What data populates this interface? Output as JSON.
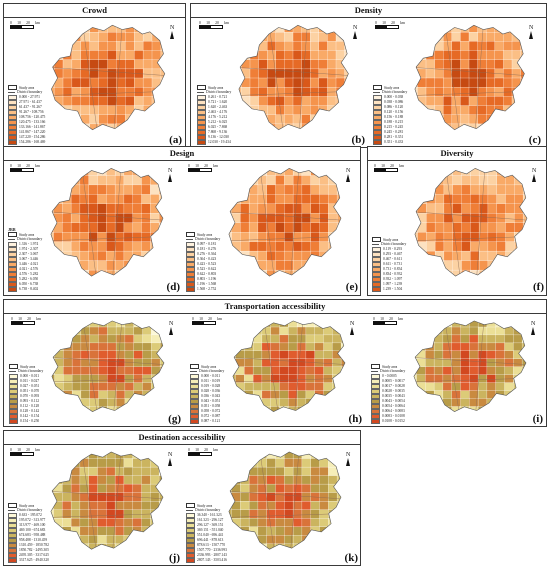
{
  "legend_common": {
    "study_area": "Study area",
    "district_boundary": "District boundary"
  },
  "panels": [
    {
      "id": "crowd",
      "title": "Crowd",
      "maps": [
        {
          "letter": "(a)",
          "legend_title": "",
          "classes": [
            "0.000 - 27.971",
            "27.971 - 61.437",
            "61.437 - 91.267",
            "91.267 - 108.756",
            "108.756 - 120.475",
            "120.475 - 133.166",
            "133.166 - 141.867",
            "141.867 - 147.220",
            "147.220 - 154.286",
            "154.286 - 168.469"
          ],
          "colors": [
            "#fef2df",
            "#fde2c1",
            "#fcd2a3",
            "#fbbf85",
            "#f9aa67",
            "#f5944d",
            "#ef7e37",
            "#e66a25",
            "#d9581a",
            "#c64a12"
          ],
          "seed": 3
        }
      ]
    },
    {
      "id": "density",
      "title": "Density",
      "maps": [
        {
          "letter": "(b)",
          "legend_title": "",
          "classes": [
            "0.261 - 0.721",
            "0.721 - 1.620",
            "1.620 - 2.463",
            "2.463 - 4.176",
            "4.176 - 5.212",
            "5.212 - 6.025",
            "6.025 - 7.868",
            "7.868 - 9.136",
            "9.136 - 12.030",
            "12.030 - 19.434"
          ],
          "colors": [
            "#fef2df",
            "#fde2c1",
            "#fcd2a3",
            "#fbbf85",
            "#f9aa67",
            "#f5944d",
            "#ef7e37",
            "#e66a25",
            "#d9581a",
            "#c64a12"
          ],
          "seed": 7
        },
        {
          "letter": "(c)",
          "legend_title": "",
          "classes": [
            "0.000 - 0.038",
            "0.038 - 0.086",
            "0.086 - 0.120",
            "0.120 - 0.156",
            "0.156 - 0.188",
            "0.188 - 0.215",
            "0.215 - 0.245",
            "0.245 - 0.281",
            "0.281 - 0.351",
            "0.351 - 0.433"
          ],
          "colors": [
            "#fef2df",
            "#fde2c1",
            "#fcd2a3",
            "#fbbf85",
            "#f9aa67",
            "#f5944d",
            "#ef7e37",
            "#e66a25",
            "#d9581a",
            "#c64a12"
          ],
          "seed": 11
        }
      ]
    },
    {
      "id": "design",
      "title": "Design",
      "maps": [
        {
          "letter": "(d)",
          "legend_title": "JRB",
          "classes": [
            "1.316 - 1.974",
            "1.974 - 2.307",
            "2.307 - 3.067",
            "3.067 - 3.446",
            "3.446 - 4.021",
            "4.021 - 4.576",
            "4.576 - 5.282",
            "5.282 - 6.050",
            "6.050 - 6.738",
            "6.738 - 8.402"
          ],
          "colors": [
            "#fef2df",
            "#fde2c1",
            "#fcd2a3",
            "#fbbf85",
            "#f9aa67",
            "#f5944d",
            "#ef7e37",
            "#e66a25",
            "#d9581a",
            "#c64a12"
          ],
          "seed": 13
        },
        {
          "letter": "(e)",
          "legend_title": "",
          "classes": [
            "0.097 - 0.181",
            "0.181 - 0.276",
            "0.276 - 0.364",
            "0.364 - 0.423",
            "0.423 - 0.523",
            "0.523 - 0.622",
            "0.622 - 0.803",
            "0.803 - 1.196",
            "1.196 - 1.568",
            "1.568 - 2.752"
          ],
          "colors": [
            "#fef2df",
            "#fde2c1",
            "#fcd2a3",
            "#fbbf85",
            "#f9aa67",
            "#f5944d",
            "#ef7e37",
            "#e66a25",
            "#d9581a",
            "#c64a12"
          ],
          "seed": 17
        }
      ]
    },
    {
      "id": "diversity",
      "title": "Diversity",
      "maps": [
        {
          "letter": "(f)",
          "legend_title": "",
          "classes": [
            "0.119 - 0.293",
            "0.293 - 0.467",
            "0.467 - 0.611",
            "0.611 - 0.731",
            "0.731 - 0.834",
            "0.834 - 0.932",
            "0.932 - 1.097",
            "1.097 - 1.239",
            "1.239 - 1.504"
          ],
          "colors": [
            "#fef2df",
            "#fde2c1",
            "#fcd2a3",
            "#fbbf85",
            "#f9aa67",
            "#f5944d",
            "#ef7e37",
            "#e66a25",
            "#d9581a"
          ],
          "seed": 19
        }
      ]
    },
    {
      "id": "transport",
      "title": "Transportation accessibility",
      "maps": [
        {
          "letter": "(g)",
          "legend_title": "",
          "classes": [
            "0.000 - 0.011",
            "0.011 - 0.027",
            "0.027 - 0.051",
            "0.051 - 0.070",
            "0.070 - 0.093",
            "0.093 - 0.112",
            "0.112 - 0.128",
            "0.128 - 0.142",
            "0.142 - 0.154",
            "0.154 - 0.250"
          ],
          "colors": [
            "#fdf8d8",
            "#f6eeb8",
            "#ebdf96",
            "#dccb78",
            "#cbb45f",
            "#b89c48",
            "#c98a40",
            "#d9733a",
            "#e05c2e",
            "#d24820"
          ],
          "seed": 23
        },
        {
          "letter": "(h)",
          "legend_title": "",
          "classes": [
            "0.000 - 0.011",
            "0.011 - 0.019",
            "0.019 - 0.028",
            "0.028 - 0.036",
            "0.036 - 0.043",
            "0.043 - 0.051",
            "0.051 - 0.058",
            "0.058 - 0.072",
            "0.072 - 0.087",
            "0.087 - 0.121"
          ],
          "colors": [
            "#fdf8d8",
            "#f6eeb8",
            "#ebdf96",
            "#dccb78",
            "#cbb45f",
            "#b89c48",
            "#c98a40",
            "#d9733a",
            "#e05c2e",
            "#d24820"
          ],
          "seed": 29
        },
        {
          "letter": "(i)",
          "legend_title": "",
          "classes": [
            "0 - 0.0005",
            "0.0005 - 0.0017",
            "0.0017 - 0.0028",
            "0.0028 - 0.0035",
            "0.0035 - 0.0043",
            "0.0043 - 0.0054",
            "0.0054 - 0.0064",
            "0.0064 - 0.0083",
            "0.0083 - 0.0108",
            "0.0108 - 0.0152"
          ],
          "colors": [
            "#fdf8d8",
            "#f6eeb8",
            "#ebdf96",
            "#dccb78",
            "#cbb45f",
            "#b89c48",
            "#c98a40",
            "#d9733a",
            "#e05c2e",
            "#d24820"
          ],
          "seed": 31
        }
      ]
    },
    {
      "id": "destination",
      "title": "Destination accessibility",
      "maps": [
        {
          "letter": "(j)",
          "legend_title": "",
          "classes": [
            "0.633 - 195.072",
            "195.072 - 313.977",
            "313.977 - 469.100",
            "469.100 - 674.683",
            "674.683 - 958.488",
            "958.488 - 1310.459",
            "1310.459 - 1850.782",
            "1850.782 - 2495.305",
            "2495.305 - 3317.625",
            "3317.625 - 4940.320"
          ],
          "colors": [
            "#fdf8d8",
            "#f6eeb8",
            "#ebdf96",
            "#dccb78",
            "#cbb45f",
            "#b89c48",
            "#c98a40",
            "#d9733a",
            "#e05c2e",
            "#d24820"
          ],
          "seed": 37
        },
        {
          "letter": "(k)",
          "legend_title": "",
          "classes": [
            "36.340 - 161.323",
            "161.323 - 296.127",
            "296.127 - 369.151",
            "369.151 - 551.040",
            "551.040 - 696.441",
            "696.441 - 878.613",
            "878.613 - 1507.770",
            "1507.770 - 2336.993",
            "2336.993 - 2807.143",
            "2807.143 - 3503.416"
          ],
          "colors": [
            "#fdf8d8",
            "#f6eeb8",
            "#ebdf96",
            "#dccb78",
            "#cbb45f",
            "#b89c48",
            "#c98a40",
            "#d9733a",
            "#e05c2e",
            "#d24820"
          ],
          "seed": 41
        }
      ]
    }
  ],
  "scale": {
    "ticks": [
      "0",
      "10",
      "20"
    ],
    "unit": "km"
  },
  "north": "N"
}
